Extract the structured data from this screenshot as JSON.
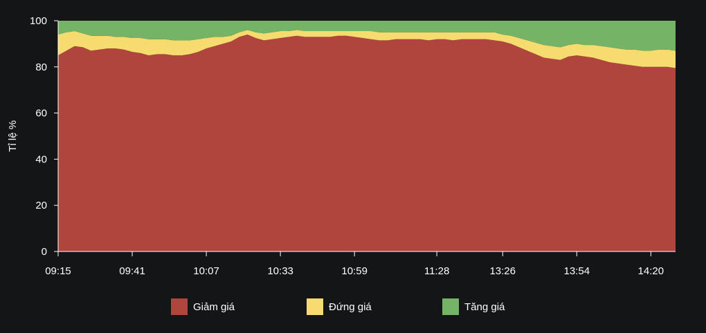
{
  "chart_data": {
    "type": "area",
    "stacked": true,
    "ylabel": "Tỉ lệ %",
    "xlabel": "",
    "ylim": [
      0,
      100
    ],
    "yticks": [
      0,
      20,
      40,
      60,
      80,
      100
    ],
    "grid": false,
    "legend_position": "bottom",
    "x_tick_labels": [
      "09:15",
      "09:41",
      "10:07",
      "10:33",
      "10:59",
      "11:28",
      "13:26",
      "13:54",
      "14:20"
    ],
    "x": [
      "09:15",
      "09:18",
      "09:21",
      "09:24",
      "09:27",
      "09:30",
      "09:33",
      "09:36",
      "09:39",
      "09:41",
      "09:44",
      "09:47",
      "09:50",
      "09:53",
      "09:56",
      "09:59",
      "10:02",
      "10:05",
      "10:07",
      "10:10",
      "10:13",
      "10:16",
      "10:19",
      "10:22",
      "10:25",
      "10:28",
      "10:31",
      "10:33",
      "10:36",
      "10:39",
      "10:42",
      "10:45",
      "10:48",
      "10:51",
      "10:54",
      "10:57",
      "10:59",
      "11:02",
      "11:05",
      "11:08",
      "11:11",
      "11:14",
      "11:17",
      "11:20",
      "11:23",
      "11:26",
      "11:28",
      "13:06",
      "13:09",
      "13:12",
      "13:15",
      "13:18",
      "13:21",
      "13:24",
      "13:26",
      "13:29",
      "13:32",
      "13:35",
      "13:38",
      "13:41",
      "13:44",
      "13:47",
      "13:50",
      "13:54",
      "13:57",
      "14:00",
      "14:03",
      "14:06",
      "14:09",
      "14:12",
      "14:15",
      "14:18",
      "14:20",
      "14:23",
      "14:26",
      "14:29"
    ],
    "series": [
      {
        "name": "Giảm giá",
        "color": "#b0453e",
        "values": [
          85,
          87,
          89,
          88.5,
          87,
          87.5,
          88,
          88,
          87.5,
          86.5,
          86,
          85,
          85.5,
          85.5,
          85,
          85,
          85.5,
          86.5,
          88,
          89,
          90,
          91,
          93,
          94,
          92.5,
          91.5,
          92,
          92.5,
          93,
          93.5,
          93,
          93,
          93,
          93,
          93.5,
          93.5,
          93,
          92.5,
          92,
          91.5,
          91.5,
          92,
          92,
          92,
          92,
          91.5,
          92,
          92,
          91.5,
          92,
          92,
          92,
          92,
          91.5,
          91,
          90,
          88.5,
          87,
          85.5,
          84,
          83.5,
          83,
          84.5,
          85,
          84.5,
          84,
          83,
          82,
          81.5,
          81,
          80.5,
          80,
          80,
          80,
          80,
          79.5
        ]
      },
      {
        "name": "Đứng giá",
        "color": "#f6dc6e",
        "values": [
          9,
          8,
          6.5,
          6,
          6.5,
          6,
          5.5,
          5,
          5.5,
          6,
          6.5,
          7,
          6.5,
          6.5,
          6.5,
          6.5,
          6,
          5.5,
          4.5,
          4,
          3,
          2.5,
          2,
          2,
          2.5,
          3,
          3,
          3,
          2.5,
          2.5,
          2.5,
          2.5,
          2.5,
          2.5,
          2,
          2,
          2.5,
          3,
          3.5,
          3.5,
          3.5,
          3,
          3,
          3,
          3,
          3.5,
          3,
          3,
          3.5,
          3,
          3,
          3,
          3,
          3.5,
          3,
          3.5,
          4,
          4.5,
          5,
          5.5,
          5.5,
          5.5,
          5,
          5,
          5,
          5.5,
          6,
          6.5,
          6.5,
          6.5,
          7,
          7,
          7,
          7.5,
          7.5,
          7.5
        ]
      },
      {
        "name": "Tăng giá",
        "color": "#75b366",
        "values": [
          6,
          5,
          4.5,
          5.5,
          6.5,
          6.5,
          6.5,
          7,
          7,
          7.5,
          7.5,
          8,
          8,
          8,
          8.5,
          8.5,
          8.5,
          8,
          7.5,
          7,
          7,
          6.5,
          5,
          4,
          5,
          5.5,
          5,
          4.5,
          4.5,
          4,
          4.5,
          4.5,
          4.5,
          4.5,
          4.5,
          4.5,
          4.5,
          4.5,
          4.5,
          5,
          5,
          5,
          5,
          5,
          5,
          5,
          5,
          5,
          5,
          5,
          5,
          5,
          5,
          5,
          6,
          6.5,
          7.5,
          8.5,
          9.5,
          10.5,
          11,
          11.5,
          10.5,
          10,
          10.5,
          10.5,
          11,
          11.5,
          12,
          12.5,
          12.5,
          13,
          13,
          12.5,
          12.5,
          13
        ]
      }
    ]
  }
}
